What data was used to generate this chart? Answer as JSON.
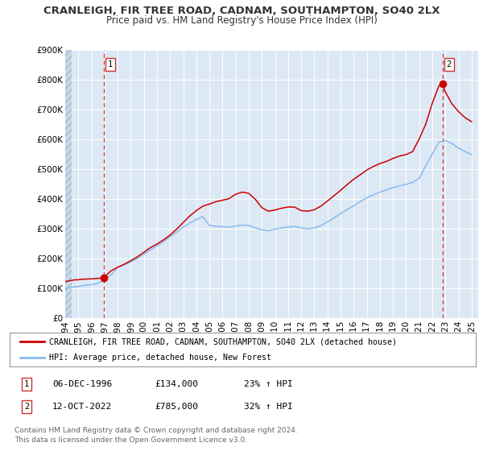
{
  "title": "CRANLEIGH, FIR TREE ROAD, CADNAM, SOUTHAMPTON, SO40 2LX",
  "subtitle": "Price paid vs. HM Land Registry's House Price Index (HPI)",
  "ylim": [
    0,
    900000
  ],
  "xlim_start": 1994.0,
  "xlim_end": 2025.5,
  "yticks": [
    0,
    100000,
    200000,
    300000,
    400000,
    500000,
    600000,
    700000,
    800000,
    900000
  ],
  "ytick_labels": [
    "£0",
    "£100K",
    "£200K",
    "£300K",
    "£400K",
    "£500K",
    "£600K",
    "£700K",
    "£800K",
    "£900K"
  ],
  "xticks": [
    1994,
    1995,
    1996,
    1997,
    1998,
    1999,
    2000,
    2001,
    2002,
    2003,
    2004,
    2005,
    2006,
    2007,
    2008,
    2009,
    2010,
    2011,
    2012,
    2013,
    2014,
    2015,
    2016,
    2017,
    2018,
    2019,
    2020,
    2021,
    2022,
    2023,
    2024,
    2025
  ],
  "legend1_label": "CRANLEIGH, FIR TREE ROAD, CADNAM, SOUTHAMPTON, SO40 2LX (detached house)",
  "legend1_color": "#cc0000",
  "legend2_label": "HPI: Average price, detached house, New Forest",
  "legend2_color": "#6699cc",
  "marker1_date": 1996.92,
  "marker1_value": 134000,
  "marker1_label": "1",
  "marker2_date": 2022.78,
  "marker2_value": 785000,
  "marker2_label": "2",
  "vline1_x": 1996.92,
  "vline2_x": 2022.78,
  "annotation1_date": "06-DEC-1996",
  "annotation1_price": "£134,000",
  "annotation1_hpi": "23% ↑ HPI",
  "annotation2_date": "12-OCT-2022",
  "annotation2_price": "£785,000",
  "annotation2_hpi": "32% ↑ HPI",
  "footer1": "Contains HM Land Registry data © Crown copyright and database right 2024.",
  "footer2": "This data is licensed under the Open Government Licence v3.0.",
  "background_color": "#ffffff",
  "plot_background_color": "#dde8f5",
  "plot_background_hatched_color": "#c8d8ec",
  "grid_color": "#ffffff",
  "title_color": "#333333",
  "red_line_color": "#cc0000",
  "blue_line_color": "#88bbee",
  "red_marker_color": "#cc0000",
  "vline_color": "#cc3333",
  "hpi_years": [
    1994.0,
    1994.083,
    1994.167,
    1994.25,
    1994.333,
    1994.417,
    1994.5,
    1994.583,
    1994.667,
    1994.75,
    1994.833,
    1994.917,
    1995.0,
    1995.083,
    1995.167,
    1995.25,
    1995.333,
    1995.417,
    1995.5,
    1995.583,
    1995.667,
    1995.75,
    1995.833,
    1995.917,
    1996.0,
    1996.083,
    1996.167,
    1996.25,
    1996.333,
    1996.417,
    1996.5,
    1996.583,
    1996.667,
    1996.75,
    1996.833,
    1996.917,
    1997.0,
    1997.083,
    1997.167,
    1997.25,
    1997.333,
    1997.417,
    1997.5,
    1997.583,
    1997.667,
    1997.75,
    1997.833,
    1997.917,
    1998.0,
    1998.5,
    1999.0,
    1999.5,
    2000.0,
    2000.5,
    2001.0,
    2001.5,
    2002.0,
    2002.5,
    2003.0,
    2003.5,
    2004.0,
    2004.5,
    2005.0,
    2005.5,
    2006.0,
    2006.5,
    2007.0,
    2007.5,
    2008.0,
    2008.5,
    2009.0,
    2009.5,
    2010.0,
    2010.5,
    2011.0,
    2011.5,
    2012.0,
    2012.5,
    2013.0,
    2013.5,
    2014.0,
    2014.5,
    2015.0,
    2015.5,
    2016.0,
    2016.5,
    2017.0,
    2017.5,
    2018.0,
    2018.5,
    2019.0,
    2019.5,
    2020.0,
    2020.5,
    2021.0,
    2021.5,
    2022.0,
    2022.5,
    2023.0,
    2023.5,
    2024.0,
    2024.5,
    2025.0
  ],
  "hpi_values": [
    100000,
    100500,
    101000,
    101500,
    102000,
    102500,
    103000,
    103500,
    104000,
    104500,
    105000,
    105500,
    106000,
    106500,
    107000,
    107500,
    108000,
    108500,
    109000,
    109500,
    110000,
    110500,
    111000,
    111500,
    112000,
    112500,
    113000,
    114000,
    115000,
    116000,
    117500,
    119000,
    120500,
    122000,
    123500,
    125000,
    127000,
    130000,
    133000,
    136000,
    139000,
    142000,
    145000,
    149000,
    153000,
    157000,
    161000,
    165000,
    170000,
    178000,
    188000,
    200000,
    214000,
    228000,
    242000,
    256000,
    272000,
    288000,
    305000,
    318000,
    330000,
    340000,
    310000,
    308000,
    306000,
    305000,
    308000,
    312000,
    310000,
    302000,
    296000,
    293000,
    298000,
    302000,
    305000,
    307000,
    302000,
    299000,
    302000,
    310000,
    322000,
    335000,
    350000,
    363000,
    376000,
    390000,
    403000,
    413000,
    422000,
    430000,
    437000,
    443000,
    448000,
    455000,
    468000,
    510000,
    550000,
    590000,
    595000,
    585000,
    570000,
    558000,
    548000
  ],
  "red_years": [
    1994.0,
    1994.25,
    1994.5,
    1994.75,
    1995.0,
    1995.25,
    1995.5,
    1995.75,
    1996.0,
    1996.25,
    1996.5,
    1996.75,
    1996.92,
    1997.25,
    1997.5,
    1997.75,
    1998.0,
    1998.5,
    1999.0,
    1999.5,
    2000.0,
    2000.5,
    2001.0,
    2001.5,
    2002.0,
    2002.5,
    2003.0,
    2003.5,
    2004.0,
    2004.5,
    2005.0,
    2005.5,
    2006.0,
    2006.5,
    2007.0,
    2007.5,
    2008.0,
    2008.5,
    2009.0,
    2009.5,
    2010.0,
    2010.5,
    2011.0,
    2011.5,
    2012.0,
    2012.5,
    2013.0,
    2013.5,
    2014.0,
    2014.5,
    2015.0,
    2015.5,
    2016.0,
    2016.5,
    2017.0,
    2017.5,
    2018.0,
    2018.5,
    2019.0,
    2019.5,
    2020.0,
    2020.5,
    2021.0,
    2021.5,
    2022.0,
    2022.5,
    2022.78,
    2023.0,
    2023.5,
    2024.0,
    2024.5,
    2025.0
  ],
  "red_values": [
    122000,
    124000,
    126000,
    128000,
    128000,
    130000,
    130000,
    131000,
    131000,
    132000,
    133000,
    133500,
    134000,
    148000,
    158000,
    164000,
    170000,
    180000,
    192000,
    205000,
    220000,
    236000,
    248000,
    262000,
    278000,
    298000,
    320000,
    342000,
    360000,
    375000,
    382000,
    390000,
    395000,
    400000,
    415000,
    422000,
    418000,
    398000,
    370000,
    358000,
    362000,
    368000,
    372000,
    372000,
    360000,
    358000,
    363000,
    375000,
    392000,
    410000,
    428000,
    447000,
    465000,
    480000,
    496000,
    508000,
    518000,
    525000,
    535000,
    543000,
    548000,
    558000,
    600000,
    650000,
    720000,
    778000,
    785000,
    758000,
    718000,
    692000,
    672000,
    658000
  ]
}
